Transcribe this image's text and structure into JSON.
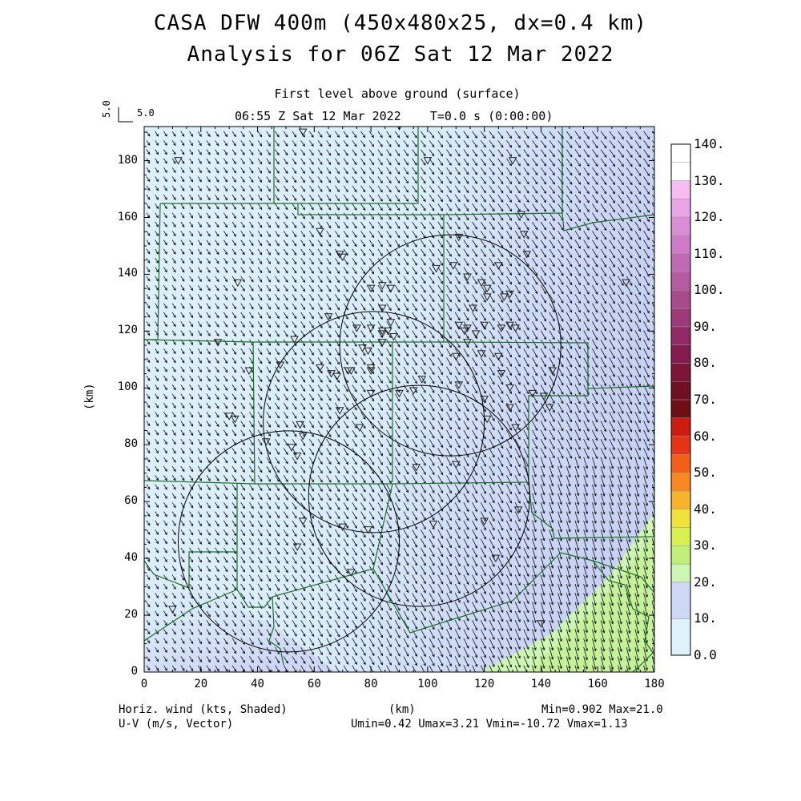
{
  "titles": {
    "line1": "CASA DFW 400m (450x480x25, dx=0.4 km)",
    "line2": "Analysis for 06Z Sat 12 Mar 2022",
    "level": "First level above ground (surface)",
    "time": "06:55 Z Sat 12 Mar 2022    T=0.0 s (0:00:00)"
  },
  "vector_scale": {
    "label_x": "5.0",
    "label_y": "5.0"
  },
  "axes": {
    "x_label": "(km)",
    "y_label": "(km)",
    "x_range": [
      0,
      180
    ],
    "y_range": [
      0,
      192
    ],
    "x_ticks": [
      "0",
      "20",
      "40",
      "60",
      "80",
      "100",
      "120",
      "140",
      "160",
      "180"
    ],
    "y_ticks": [
      "0",
      "20",
      "40",
      "60",
      "80",
      "100",
      "120",
      "140",
      "160",
      "180"
    ]
  },
  "colorbar": {
    "labels": [
      "0.0",
      "10.",
      "20.",
      "30.",
      "40.",
      "50.",
      "60.",
      "70.",
      "80.",
      "90.",
      "100.",
      "110.",
      "120.",
      "130.",
      "140."
    ],
    "colors": [
      "#dff1fb",
      "#cdd8f6",
      "#cdf5b3",
      "#c0f07a",
      "#d8f050",
      "#f0e13c",
      "#f7b32c",
      "#f88724",
      "#f25f18",
      "#e53316",
      "#cc1b10",
      "#6e0f16",
      "#701024",
      "#7c1538",
      "#861b50",
      "#912a66",
      "#9c3a7a",
      "#a84b8e",
      "#b55ba2",
      "#c16ab4",
      "#cd7bc6",
      "#da8ed6",
      "#e8a4e4",
      "#f5bcf2"
    ]
  },
  "footer": {
    "left1": "Horiz. wind (kts, Shaded)",
    "left2": "U-V (m/s, Vector)",
    "center": "(km)",
    "right1": "Min=0.902 Max=21.0",
    "right2": "Umin=0.42 Umax=3.21 Vmin=-10.72 Vmax=1.13"
  },
  "colors": {
    "field_low": "#dff1fb",
    "field_mid": "#cdd8f6",
    "field_high": "#cdf5b3",
    "county_border": "#1e6b2e",
    "radar_ring": "#000000"
  },
  "radar_rings": [
    {
      "x": 51,
      "y": 46,
      "r": 39
    },
    {
      "x": 81,
      "y": 88,
      "r": 39
    },
    {
      "x": 108,
      "y": 115,
      "r": 39
    },
    {
      "x": 97,
      "y": 62,
      "r": 39
    }
  ],
  "stations": [
    [
      12,
      180
    ],
    [
      56,
      190
    ],
    [
      90,
      192
    ],
    [
      100,
      180
    ],
    [
      130,
      180
    ],
    [
      133,
      161
    ],
    [
      62,
      155
    ],
    [
      69,
      147
    ],
    [
      70,
      146
    ],
    [
      111,
      153
    ],
    [
      134,
      154
    ],
    [
      135,
      147
    ],
    [
      103,
      142
    ],
    [
      109,
      143
    ],
    [
      114,
      139
    ],
    [
      125,
      143
    ],
    [
      33,
      137
    ],
    [
      80,
      135
    ],
    [
      84,
      136
    ],
    [
      87,
      135
    ],
    [
      119,
      137
    ],
    [
      121,
      135
    ],
    [
      121,
      132
    ],
    [
      127,
      132
    ],
    [
      129,
      133
    ],
    [
      116,
      128
    ],
    [
      65,
      125
    ],
    [
      84,
      128
    ],
    [
      87,
      123
    ],
    [
      75,
      121
    ],
    [
      80,
      121
    ],
    [
      84,
      119
    ],
    [
      84,
      120
    ],
    [
      86,
      120
    ],
    [
      88,
      118
    ],
    [
      111,
      122
    ],
    [
      113,
      120
    ],
    [
      114,
      121
    ],
    [
      117,
      119
    ],
    [
      120,
      122
    ],
    [
      126,
      121
    ],
    [
      129,
      122
    ],
    [
      131,
      121
    ],
    [
      26,
      116
    ],
    [
      53,
      117
    ],
    [
      77,
      114
    ],
    [
      79,
      113
    ],
    [
      84,
      116
    ],
    [
      114,
      116
    ],
    [
      110,
      111
    ],
    [
      119,
      112
    ],
    [
      125,
      111
    ],
    [
      37,
      106
    ],
    [
      48,
      108
    ],
    [
      62,
      107
    ],
    [
      66,
      105
    ],
    [
      68,
      104
    ],
    [
      72,
      106
    ],
    [
      73,
      106
    ],
    [
      80,
      106
    ],
    [
      80,
      107
    ],
    [
      98,
      103
    ],
    [
      111,
      101
    ],
    [
      126,
      105
    ],
    [
      144,
      106
    ],
    [
      129,
      100
    ],
    [
      137,
      98
    ],
    [
      141,
      97
    ],
    [
      80,
      98
    ],
    [
      90,
      98
    ],
    [
      95,
      99
    ],
    [
      120,
      96
    ],
    [
      129,
      93
    ],
    [
      143,
      93
    ],
    [
      30,
      90
    ],
    [
      32,
      89
    ],
    [
      69,
      92
    ],
    [
      76,
      86
    ],
    [
      121,
      89
    ],
    [
      131,
      86
    ],
    [
      55,
      87
    ],
    [
      56,
      83
    ],
    [
      43,
      81
    ],
    [
      52,
      79
    ],
    [
      54,
      76
    ],
    [
      110,
      73
    ],
    [
      96,
      72
    ],
    [
      132,
      57
    ],
    [
      120,
      53
    ],
    [
      102,
      52
    ],
    [
      56,
      53
    ],
    [
      70,
      51
    ],
    [
      79,
      50
    ],
    [
      54,
      44
    ],
    [
      124,
      40
    ],
    [
      73,
      35
    ],
    [
      10,
      22
    ],
    [
      140,
      17
    ],
    [
      170,
      137
    ]
  ]
}
